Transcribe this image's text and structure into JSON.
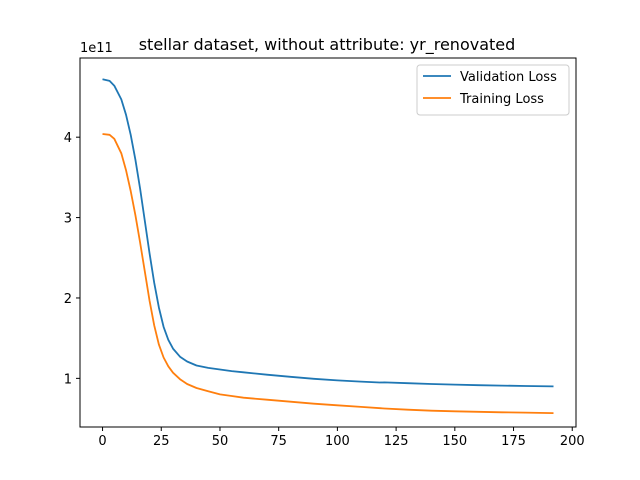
{
  "chart_data": {
    "type": "line",
    "title": "stellar dataset, without attribute: yr_renovated",
    "xlabel": "",
    "ylabel": "",
    "y_scale_label": "1e11",
    "xlim": [
      -9.6,
      201.6
    ],
    "ylim": [
      0.395,
      4.985
    ],
    "xticks": [
      0,
      25,
      50,
      75,
      100,
      125,
      150,
      175,
      200
    ],
    "yticks": [
      1,
      2,
      3,
      4
    ],
    "grid": false,
    "legend_position": "upper right",
    "series": [
      {
        "name": "Validation Loss",
        "color": "#1f77b4",
        "x": [
          0,
          3,
          5,
          8,
          10,
          12,
          14,
          16,
          18,
          20,
          22,
          24,
          26,
          28,
          30,
          33,
          36,
          40,
          45,
          50,
          55,
          60,
          70,
          80,
          90,
          100,
          110,
          118,
          120,
          130,
          140,
          150,
          160,
          170,
          180,
          192
        ],
        "y": [
          4.72,
          4.7,
          4.64,
          4.47,
          4.28,
          4.03,
          3.72,
          3.36,
          2.96,
          2.56,
          2.19,
          1.88,
          1.64,
          1.48,
          1.37,
          1.27,
          1.21,
          1.16,
          1.13,
          1.11,
          1.09,
          1.075,
          1.045,
          1.02,
          0.995,
          0.975,
          0.96,
          0.948,
          0.95,
          0.94,
          0.93,
          0.922,
          0.915,
          0.91,
          0.905,
          0.9
        ]
      },
      {
        "name": "Training Loss",
        "color": "#ff7f0e",
        "x": [
          0,
          3,
          5,
          8,
          10,
          12,
          14,
          16,
          18,
          20,
          22,
          24,
          26,
          28,
          30,
          33,
          36,
          40,
          45,
          50,
          55,
          60,
          70,
          80,
          90,
          100,
          110,
          120,
          130,
          140,
          150,
          160,
          170,
          180,
          192
        ],
        "y": [
          4.04,
          4.03,
          3.98,
          3.8,
          3.59,
          3.33,
          3.03,
          2.69,
          2.33,
          1.97,
          1.66,
          1.42,
          1.26,
          1.15,
          1.07,
          0.99,
          0.93,
          0.88,
          0.84,
          0.8,
          0.78,
          0.76,
          0.735,
          0.71,
          0.685,
          0.665,
          0.645,
          0.625,
          0.61,
          0.598,
          0.59,
          0.584,
          0.578,
          0.574,
          0.568
        ]
      }
    ]
  }
}
